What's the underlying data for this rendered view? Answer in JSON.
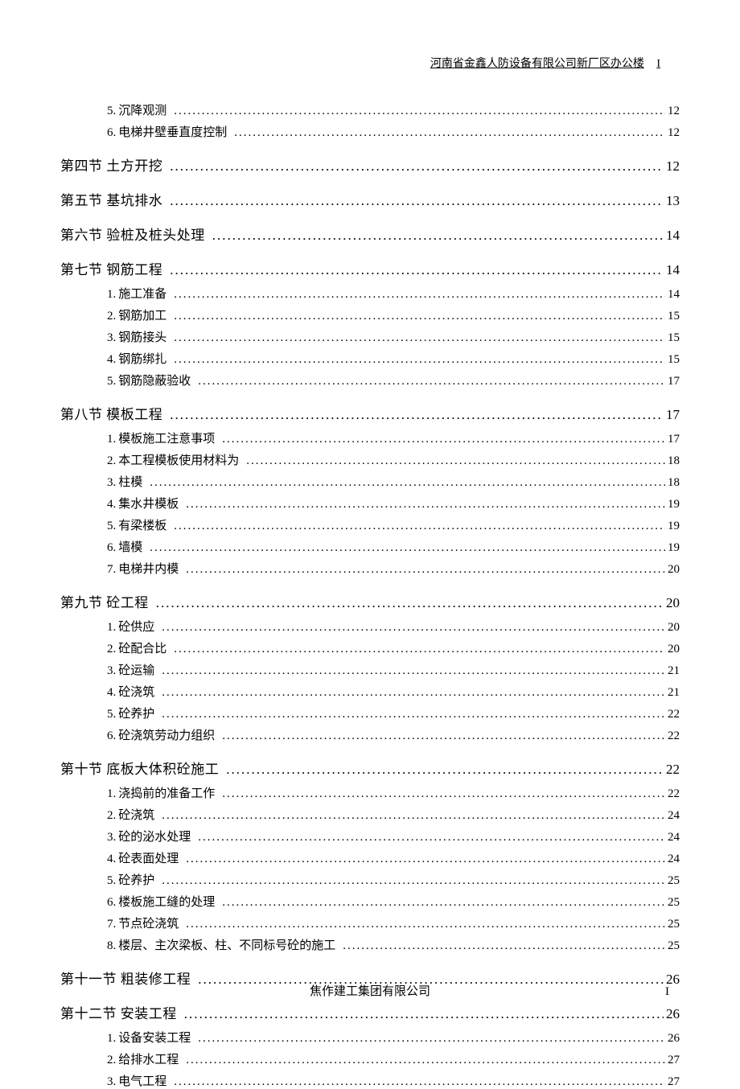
{
  "header": {
    "text": "河南省金鑫人防设备有限公司新厂区办公楼",
    "pageI": "I"
  },
  "footer": {
    "text": "焦作建工集团有限公司",
    "page": "I"
  },
  "dots_section": "..........................................................................................................................................................................................................",
  "dots_item": "..........................................................................................................................................................................................................",
  "toc": [
    {
      "type": "item",
      "num": "5.",
      "label": "沉降观测",
      "page": "12"
    },
    {
      "type": "item",
      "num": "6.",
      "label": "电梯井壁垂直度控制",
      "page": "12"
    },
    {
      "type": "section",
      "label": "第四节  土方开挖",
      "page": "12"
    },
    {
      "type": "section",
      "label": "第五节  基坑排水",
      "page": "13"
    },
    {
      "type": "section",
      "label": "第六节  验桩及桩头处理",
      "page": "14"
    },
    {
      "type": "section",
      "label": "第七节  钢筋工程",
      "page": "14"
    },
    {
      "type": "item",
      "num": "1.",
      "label": "施工准备",
      "page": "14"
    },
    {
      "type": "item",
      "num": "2.",
      "label": "钢筋加工",
      "page": "15"
    },
    {
      "type": "item",
      "num": "3.",
      "label": "钢筋接头",
      "page": "15"
    },
    {
      "type": "item",
      "num": "4.",
      "label": "钢筋绑扎",
      "page": "15"
    },
    {
      "type": "item",
      "num": "5.",
      "label": "钢筋隐蔽验收",
      "page": "17"
    },
    {
      "type": "section",
      "label": "第八节  模板工程",
      "page": "17"
    },
    {
      "type": "item",
      "num": "1.",
      "label": "模板施工注意事项",
      "page": "17"
    },
    {
      "type": "item",
      "num": "2.",
      "label": "本工程模板使用材料为",
      "page": "18"
    },
    {
      "type": "item",
      "num": "3.",
      "label": "柱模",
      "page": "18"
    },
    {
      "type": "item",
      "num": "4.",
      "label": "集水井模板",
      "page": "19"
    },
    {
      "type": "item",
      "num": "5.",
      "label": "有梁楼板",
      "page": "19"
    },
    {
      "type": "item",
      "num": "6.",
      "label": "墙模",
      "page": "19"
    },
    {
      "type": "item",
      "num": "7.",
      "label": "电梯井内模",
      "page": "20"
    },
    {
      "type": "section",
      "label": "第九节  砼工程",
      "page": "20"
    },
    {
      "type": "item",
      "num": "1.",
      "label": "砼供应",
      "page": "20"
    },
    {
      "type": "item",
      "num": "2.",
      "label": "砼配合比",
      "page": "20"
    },
    {
      "type": "item",
      "num": "3.",
      "label": "砼运输",
      "page": "21"
    },
    {
      "type": "item",
      "num": "4.",
      "label": "砼浇筑",
      "page": "21"
    },
    {
      "type": "item",
      "num": "5.",
      "label": "砼养护",
      "page": "22"
    },
    {
      "type": "item",
      "num": "6.",
      "label": "砼浇筑劳动力组织",
      "page": "22"
    },
    {
      "type": "section",
      "label": "第十节  底板大体积砼施工",
      "page": "22"
    },
    {
      "type": "item",
      "num": "1.",
      "label": "浇捣前的准备工作",
      "page": "22"
    },
    {
      "type": "item",
      "num": "2.",
      "label": "砼浇筑",
      "page": "24"
    },
    {
      "type": "item",
      "num": "3.",
      "label": "砼的泌水处理",
      "page": "24"
    },
    {
      "type": "item",
      "num": "4.",
      "label": "砼表面处理",
      "page": "24"
    },
    {
      "type": "item",
      "num": "5.",
      "label": "砼养护",
      "page": "25"
    },
    {
      "type": "item",
      "num": "6.",
      "label": "楼板施工缝的处理",
      "page": "25"
    },
    {
      "type": "item",
      "num": "7.",
      "label": "节点砼浇筑",
      "page": "25"
    },
    {
      "type": "item",
      "num": "8.",
      "label": "楼层、主次梁板、柱、不同标号砼的施工",
      "page": "25"
    },
    {
      "type": "section",
      "label": "第十一节  粗装修工程",
      "page": "26"
    },
    {
      "type": "section",
      "label": "第十二节  安装工程",
      "page": "26"
    },
    {
      "type": "item",
      "num": "1.",
      "label": "设备安装工程",
      "page": "26"
    },
    {
      "type": "item",
      "num": "2.",
      "label": "给排水工程",
      "page": "27"
    },
    {
      "type": "item",
      "num": "3.",
      "label": "电气工程",
      "page": "27"
    }
  ]
}
